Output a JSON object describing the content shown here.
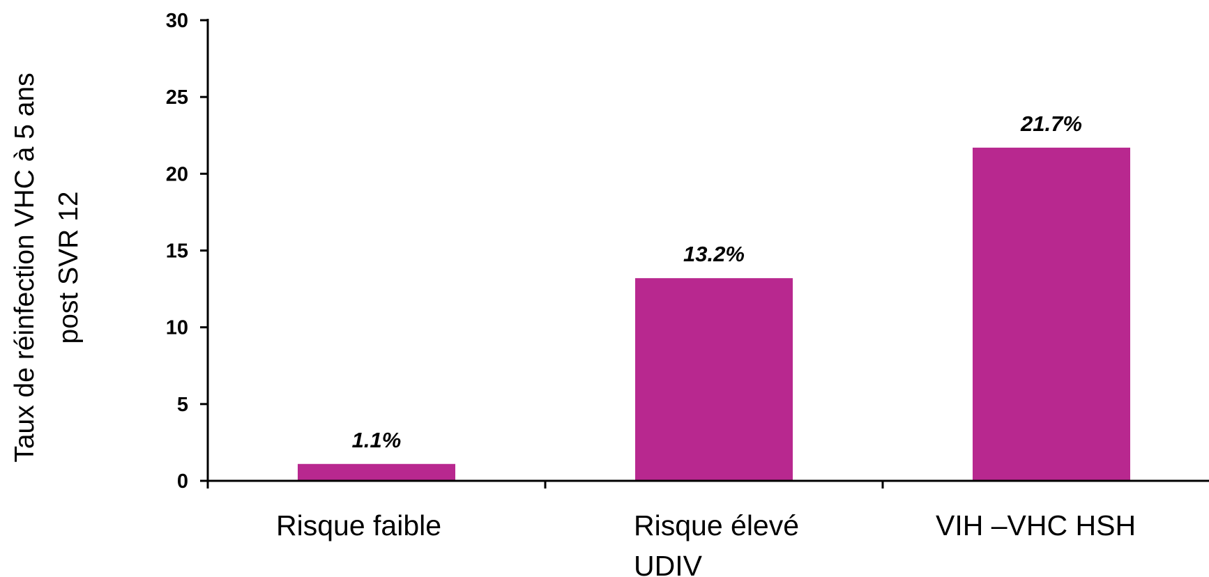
{
  "chart_data": {
    "type": "bar",
    "categories": [
      "Risque faible",
      "Risque élevé UDIV",
      "VIH –VHC HSH"
    ],
    "category_lines": [
      [
        "Risque faible"
      ],
      [
        "Risque élevé",
        "UDIV"
      ],
      [
        "VIH –VHC HSH"
      ]
    ],
    "values": [
      1.1,
      13.2,
      21.7
    ],
    "data_labels": [
      "1.1%",
      "13.2%",
      "21.7%"
    ],
    "title": "",
    "xlabel": "",
    "ylabel": "Taux de réinfection VHC  à 5 ans post SVR 12",
    "ylabel_lines": [
      "Taux de réinfection VHC  à 5 ans",
      "post SVR 12"
    ],
    "ylim": [
      0,
      30
    ],
    "yticks": [
      0,
      5,
      10,
      15,
      20,
      25,
      30
    ],
    "ytick_labels": [
      "0",
      "5",
      "10",
      "15",
      "20",
      "25",
      "30"
    ],
    "grid": false,
    "legend": "none",
    "bar_color": "#B8288F",
    "axis_color": "#000000"
  }
}
